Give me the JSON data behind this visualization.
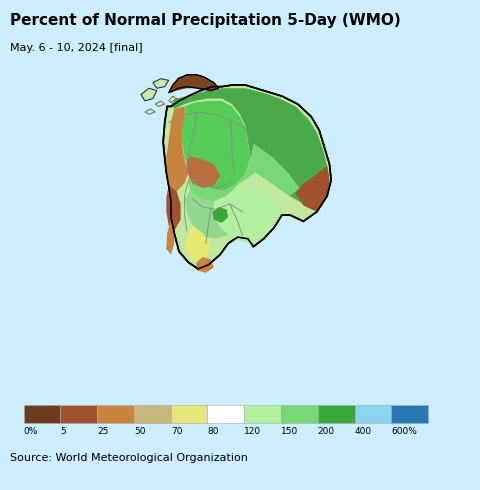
{
  "title": "Percent of Normal Precipitation 5-Day (WMO)",
  "subtitle": "May. 6 - 10, 2024 [final]",
  "source": "Source: World Meteorological Organization",
  "background_color": "#cceeff",
  "colorbar_colors": [
    "#6b3a1f",
    "#a0522d",
    "#c8843c",
    "#c8b87a",
    "#e8e87a",
    "#ffffff",
    "#b2f0a0",
    "#78d878",
    "#38a838",
    "#8ad4f0",
    "#2878b4"
  ],
  "colorbar_labels": [
    "0%",
    "5",
    "25",
    "50",
    "70",
    "80",
    "120",
    "150",
    "200",
    "400",
    "600%"
  ],
  "fig_width": 4.8,
  "fig_height": 4.9,
  "dpi": 100,
  "title_fontsize": 11,
  "subtitle_fontsize": 8,
  "source_fontsize": 8
}
